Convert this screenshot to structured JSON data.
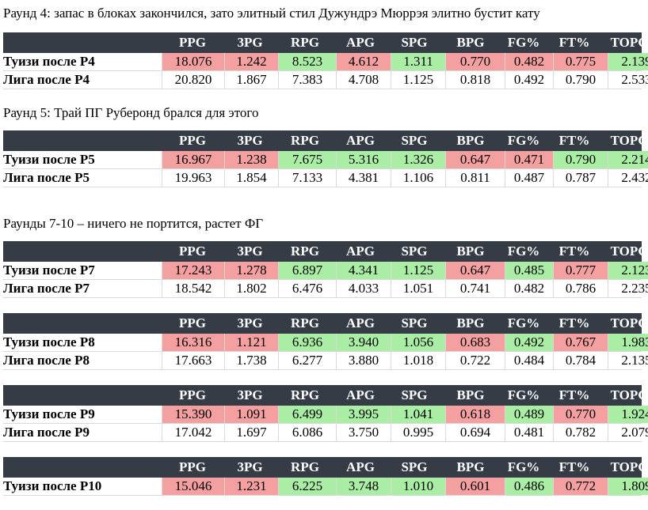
{
  "colors": {
    "header_bg": "#353c45",
    "bad": "#f4a0a0",
    "good": "#aaeea6"
  },
  "columns": [
    "PPG",
    "3PG",
    "RPG",
    "APG",
    "SPG",
    "BPG",
    "FG%",
    "FT%",
    "TOPG"
  ],
  "headings": {
    "r4": "Раунд 4: запас в блоках закончился, зато элитный стил Дужундрэ Мюррэя элитно бустит кату",
    "r5": "Раунд 5: Трай ПГ Руберонд брался для этого",
    "r7_10": "Раунды 7-10 – ничего не портится, растет ФГ"
  },
  "tables": [
    {
      "rows": [
        {
          "name": "Туизи после Р4",
          "values": [
            "18.076",
            "1.242",
            "8.523",
            "4.612",
            "1.311",
            "0.770",
            "0.482",
            "0.775",
            "2.139"
          ],
          "colors": [
            "red",
            "red",
            "green",
            "red",
            "green",
            "red",
            "red",
            "red",
            "green"
          ]
        },
        {
          "name": "Лига после Р4",
          "values": [
            "20.820",
            "1.867",
            "7.383",
            "4.708",
            "1.125",
            "0.818",
            "0.492",
            "0.790",
            "2.533"
          ],
          "colors": [
            "",
            "",
            "",
            "",
            "",
            "",
            "",
            "",
            ""
          ]
        }
      ]
    },
    {
      "rows": [
        {
          "name": "Туизи после Р5",
          "values": [
            "16.967",
            "1.238",
            "7.675",
            "5.316",
            "1.326",
            "0.647",
            "0.471",
            "0.790",
            "2.214"
          ],
          "colors": [
            "red",
            "red",
            "green",
            "green",
            "green",
            "red",
            "red",
            "green",
            "green"
          ]
        },
        {
          "name": "Лига после Р5",
          "values": [
            "19.963",
            "1.854",
            "7.133",
            "4.381",
            "1.106",
            "0.811",
            "0.487",
            "0.787",
            "2.432"
          ],
          "colors": [
            "",
            "",
            "",
            "",
            "",
            "",
            "",
            "",
            ""
          ]
        }
      ]
    },
    {
      "rows": [
        {
          "name": "Туизи после Р7",
          "values": [
            "17.243",
            "1.278",
            "6.897",
            "4.341",
            "1.125",
            "0.647",
            "0.485",
            "0.777",
            "2.123"
          ],
          "colors": [
            "red",
            "red",
            "green",
            "green",
            "green",
            "red",
            "green",
            "red",
            "green"
          ]
        },
        {
          "name": "Лига после Р7",
          "values": [
            "18.542",
            "1.802",
            "6.476",
            "4.033",
            "1.051",
            "0.741",
            "0.482",
            "0.786",
            "2.235"
          ],
          "colors": [
            "",
            "",
            "",
            "",
            "",
            "",
            "",
            "",
            ""
          ]
        }
      ]
    },
    {
      "rows": [
        {
          "name": "Туизи после Р8",
          "values": [
            "16.316",
            "1.121",
            "6.936",
            "3.940",
            "1.056",
            "0.683",
            "0.492",
            "0.767",
            "1.983"
          ],
          "colors": [
            "red",
            "red",
            "green",
            "green",
            "green",
            "red",
            "green",
            "red",
            "green"
          ]
        },
        {
          "name": "Лига после Р8",
          "values": [
            "17.663",
            "1.738",
            "6.277",
            "3.880",
            "1.018",
            "0.722",
            "0.484",
            "0.784",
            "2.135"
          ],
          "colors": [
            "",
            "",
            "",
            "",
            "",
            "",
            "",
            "",
            ""
          ]
        }
      ]
    },
    {
      "rows": [
        {
          "name": "Туизи после Р9",
          "values": [
            "15.390",
            "1.091",
            "6.499",
            "3.995",
            "1.041",
            "0.618",
            "0.489",
            "0.770",
            "1.924"
          ],
          "colors": [
            "red",
            "red",
            "green",
            "green",
            "green",
            "red",
            "green",
            "red",
            "green"
          ]
        },
        {
          "name": "Лига после Р9",
          "values": [
            "17.042",
            "1.697",
            "6.086",
            "3.750",
            "0.995",
            "0.694",
            "0.481",
            "0.782",
            "2.079"
          ],
          "colors": [
            "",
            "",
            "",
            "",
            "",
            "",
            "",
            "",
            ""
          ]
        }
      ]
    },
    {
      "rows": [
        {
          "name": "Туизи после Р10",
          "values": [
            "15.046",
            "1.231",
            "6.225",
            "3.748",
            "1.010",
            "0.601",
            "0.486",
            "0.772",
            "1.809"
          ],
          "colors": [
            "red",
            "red",
            "green",
            "green",
            "green",
            "red",
            "green",
            "red",
            "green"
          ]
        }
      ]
    }
  ]
}
